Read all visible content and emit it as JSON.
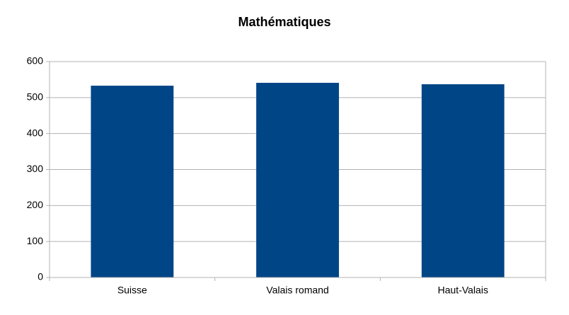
{
  "chart_data": {
    "type": "bar",
    "title": "Mathématiques",
    "categories": [
      "Suisse",
      "Valais romand",
      "Haut-Valais"
    ],
    "values": [
      533,
      541,
      537
    ],
    "color": "#004586",
    "ylim": [
      0,
      600
    ],
    "yticks": [
      0,
      100,
      200,
      300,
      400,
      500,
      600
    ],
    "grid": true
  }
}
